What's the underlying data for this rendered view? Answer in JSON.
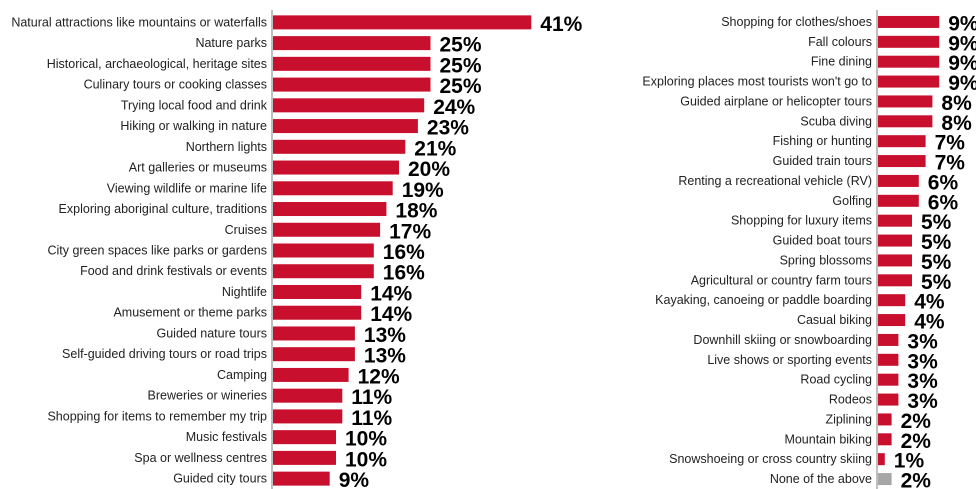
{
  "chart_data": [
    {
      "type": "bar",
      "orientation": "horizontal",
      "categories": [
        "Natural attractions like mountains or waterfalls",
        "Nature parks",
        "Historical, archaeological, heritage sites",
        "Culinary tours or cooking classes",
        "Trying local food and drink",
        "Hiking or walking in nature",
        "Northern lights",
        "Art galleries or museums",
        "Viewing wildlife or marine life",
        "Exploring aboriginal culture, traditions",
        "Cruises",
        "City green spaces like parks or gardens",
        "Food and drink festivals or events",
        "Nightlife",
        "Amusement or theme parks",
        "Guided nature tours",
        "Self-guided driving tours or road trips",
        "Camping",
        "Breweries or wineries",
        "Shopping for items to remember my trip",
        "Music festivals",
        "Spa or wellness centres",
        "Guided city tours"
      ],
      "values": [
        41,
        25,
        25,
        25,
        24,
        23,
        21,
        20,
        19,
        18,
        17,
        16,
        16,
        14,
        14,
        13,
        13,
        12,
        11,
        11,
        10,
        10,
        9
      ],
      "value_labels": [
        "41%",
        "25%",
        "25%",
        "25%",
        "24%",
        "23%",
        "21%",
        "20%",
        "19%",
        "18%",
        "17%",
        "16%",
        "16%",
        "14%",
        "14%",
        "13%",
        "13%",
        "12%",
        "11%",
        "11%",
        "10%",
        "10%",
        "9%"
      ],
      "colors": [
        "#c8102e"
      ],
      "title": "",
      "xlabel": "",
      "ylabel": ""
    },
    {
      "type": "bar",
      "orientation": "horizontal",
      "categories": [
        "Shopping for clothes/shoes",
        "Fall colours",
        "Fine dining",
        "Exploring places most tourists won't go to",
        "Guided airplane or helicopter tours",
        "Scuba diving",
        "Fishing or hunting",
        "Guided train tours",
        "Renting a recreational vehicle (RV)",
        "Golfing",
        "Shopping for luxury items",
        "Guided boat tours",
        "Spring blossoms",
        "Agricultural or country farm tours",
        "Kayaking, canoeing or paddle boarding",
        "Casual biking",
        "Downhill skiing or snowboarding",
        "Live shows or sporting events",
        "Road cycling",
        "Rodeos",
        "Ziplining",
        "Mountain biking",
        "Snowshoeing or cross country skiing",
        "None of the above"
      ],
      "values": [
        9,
        9,
        9,
        9,
        8,
        8,
        7,
        7,
        6,
        6,
        5,
        5,
        5,
        5,
        4,
        4,
        3,
        3,
        3,
        3,
        2,
        2,
        1,
        2
      ],
      "value_labels": [
        "9%",
        "9%",
        "9%",
        "9%",
        "8%",
        "8%",
        "7%",
        "7%",
        "6%",
        "6%",
        "5%",
        "5%",
        "5%",
        "5%",
        "4%",
        "4%",
        "3%",
        "3%",
        "3%",
        "3%",
        "2%",
        "2%",
        "1%",
        "2%"
      ],
      "colors": [
        "#c8102e",
        "#c8102e",
        "#c8102e",
        "#c8102e",
        "#c8102e",
        "#c8102e",
        "#c8102e",
        "#c8102e",
        "#c8102e",
        "#c8102e",
        "#c8102e",
        "#c8102e",
        "#c8102e",
        "#c8102e",
        "#c8102e",
        "#c8102e",
        "#c8102e",
        "#c8102e",
        "#c8102e",
        "#c8102e",
        "#c8102e",
        "#c8102e",
        "#c8102e",
        "#a6a6a6"
      ],
      "title": "",
      "xlabel": "",
      "ylabel": ""
    }
  ]
}
